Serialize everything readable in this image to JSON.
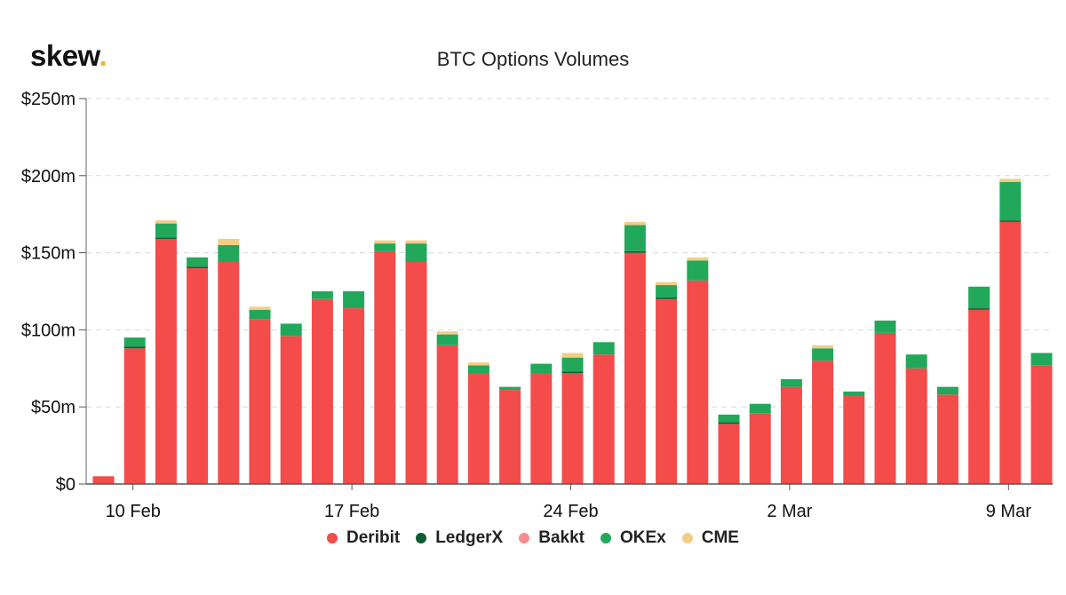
{
  "logo": {
    "text": "skew",
    "dot": "."
  },
  "chart_data": {
    "type": "bar",
    "stacked": true,
    "title": "BTC Options Volumes",
    "xlabel": "",
    "ylabel": "",
    "ylim": [
      0,
      250
    ],
    "y_ticks": [
      {
        "value": 0,
        "label": "$0"
      },
      {
        "value": 50,
        "label": "$50m"
      },
      {
        "value": 100,
        "label": "$100m"
      },
      {
        "value": 150,
        "label": "$150m"
      },
      {
        "value": 200,
        "label": "$200m"
      },
      {
        "value": 250,
        "label": "$250m"
      }
    ],
    "x_ticks": [
      {
        "index": 1,
        "label": "10 Feb"
      },
      {
        "index": 8,
        "label": "17 Feb"
      },
      {
        "index": 15,
        "label": "24 Feb"
      },
      {
        "index": 22,
        "label": "2 Mar"
      },
      {
        "index": 29,
        "label": "9 Mar"
      }
    ],
    "categories": [
      "9 Feb",
      "10 Feb",
      "11 Feb",
      "12 Feb",
      "13 Feb",
      "14 Feb",
      "15 Feb",
      "16 Feb",
      "17 Feb",
      "18 Feb",
      "19 Feb",
      "20 Feb",
      "21 Feb",
      "22 Feb",
      "23 Feb",
      "24 Feb",
      "25 Feb",
      "26 Feb",
      "27 Feb",
      "28 Feb",
      "29 Feb",
      "1 Mar",
      "2 Mar",
      "3 Mar",
      "4 Mar",
      "5 Mar",
      "6 Mar",
      "7 Mar",
      "8 Mar",
      "9 Mar",
      "10 Mar",
      "11 Mar"
    ],
    "series": [
      {
        "name": "Deribit",
        "color": "#f44b4b",
        "values": [
          5,
          88,
          159,
          140,
          144,
          107,
          96,
          120,
          114,
          151,
          144,
          90,
          72,
          61,
          72,
          72,
          84,
          150,
          120,
          132,
          39,
          46,
          63,
          80,
          57,
          98,
          75,
          58,
          113,
          170,
          77,
          0
        ]
      },
      {
        "name": "LedgerX",
        "color": "#0d5c32",
        "values": [
          0,
          1,
          1,
          1,
          0,
          0,
          0,
          0,
          0,
          0,
          0,
          0,
          0,
          0,
          0,
          1,
          0,
          1,
          1,
          0,
          1,
          0,
          0,
          0,
          0,
          0,
          0,
          0,
          1,
          1,
          0,
          0
        ]
      },
      {
        "name": "Bakkt",
        "color": "#f78c8c",
        "values": [
          0,
          0,
          0,
          0,
          0,
          0,
          0,
          0,
          0,
          0,
          0,
          0,
          0,
          0,
          0,
          0,
          0,
          0,
          0,
          0,
          0,
          0,
          0,
          0,
          0,
          0,
          0,
          0,
          0,
          0,
          0,
          0
        ]
      },
      {
        "name": "OKEx",
        "color": "#22a85a",
        "values": [
          0,
          6,
          9,
          6,
          11,
          6,
          8,
          5,
          11,
          5,
          12,
          7,
          5,
          2,
          6,
          9,
          8,
          17,
          8,
          13,
          5,
          6,
          5,
          8,
          3,
          8,
          9,
          5,
          14,
          25,
          8,
          0
        ]
      },
      {
        "name": "CME",
        "color": "#f3cd85",
        "values": [
          0,
          0,
          2,
          0,
          4,
          2,
          0,
          0,
          0,
          2,
          2,
          2,
          2,
          0,
          0,
          3,
          0,
          2,
          2,
          2,
          0,
          0,
          0,
          2,
          0,
          0,
          0,
          0,
          0,
          2,
          0,
          0
        ]
      }
    ],
    "legend_position": "bottom-center",
    "grid": true
  }
}
